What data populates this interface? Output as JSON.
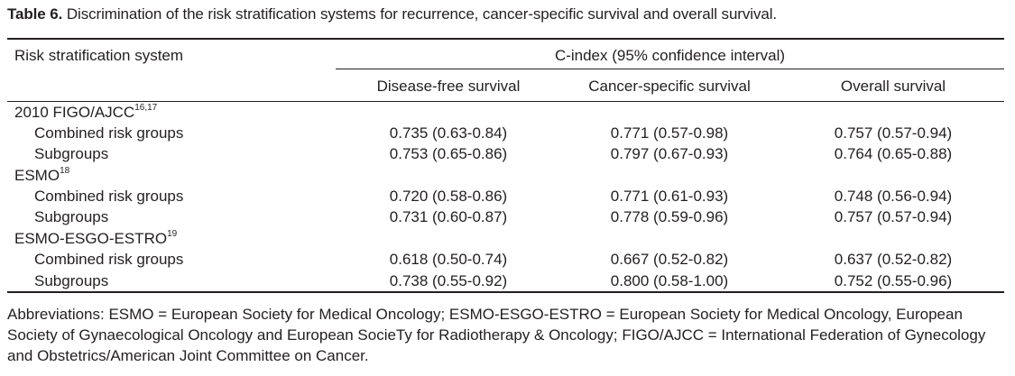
{
  "caption": {
    "label": "Table 6.",
    "text": " Discrimination of the risk stratification systems for recurrence, cancer-specific survival and overall survival."
  },
  "header": {
    "row_label": "Risk stratification system",
    "group_label": "C-index (95% confidence interval)",
    "columns": [
      "Disease-free survival",
      "Cancer-specific survival",
      "Overall survival"
    ]
  },
  "groups": [
    {
      "name": "2010 FIGO/AJCC",
      "ref": "16,17",
      "rows": [
        {
          "label": "Combined risk groups",
          "values": [
            "0.735 (0.63-0.84)",
            "0.771 (0.57-0.98)",
            "0.757 (0.57-0.94)"
          ]
        },
        {
          "label": "Subgroups",
          "values": [
            "0.753 (0.65-0.86)",
            "0.797 (0.67-0.93)",
            "0.764 (0.65-0.88)"
          ]
        }
      ]
    },
    {
      "name": "ESMO",
      "ref": "18",
      "rows": [
        {
          "label": "Combined risk groups",
          "values": [
            "0.720 (0.58-0.86)",
            "0.771 (0.61-0.93)",
            "0.748 (0.56-0.94)"
          ]
        },
        {
          "label": "Subgroups",
          "values": [
            "0.731 (0.60-0.87)",
            "0.778 (0.59-0.96)",
            "0.757 (0.57-0.94)"
          ]
        }
      ]
    },
    {
      "name": "ESMO-ESGO-ESTRO",
      "ref": "19",
      "rows": [
        {
          "label": "Combined risk groups",
          "values": [
            "0.618 (0.50-0.74)",
            "0.667 (0.52-0.82)",
            "0.637 (0.52-0.82)"
          ]
        },
        {
          "label": "Subgroups",
          "values": [
            "0.738 (0.55-0.92)",
            "0.800 (0.58-1.00)",
            "0.752 (0.55-0.96)"
          ]
        }
      ]
    }
  ],
  "footnote": "Abbreviations: ESMO = European Society for Medical Oncology; ESMO-ESGO-ESTRO = European Society for Medical Oncology, European Society of Gynaecological Oncology and European SocieTy for Radiotherapy & Oncology; FIGO/AJCC = International Federation of Gynecology and Obstetrics/American Joint Committee on Cancer."
}
